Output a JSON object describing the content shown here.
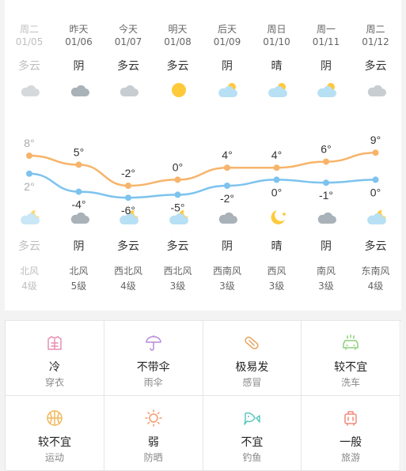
{
  "days": [
    {
      "name": "周二",
      "date": "01/05",
      "day_weather": "多云",
      "night_weather": "多云",
      "wind_dir": "北风",
      "wind_level": "4级",
      "high": "8°",
      "low": "2°",
      "day_icon": "cloud-icon",
      "night_icon": "cloudy-night-icon",
      "past": true
    },
    {
      "name": "昨天",
      "date": "01/06",
      "day_weather": "阴",
      "night_weather": "阴",
      "wind_dir": "北风",
      "wind_level": "5级",
      "high": "5°",
      "low": "-4°",
      "day_icon": "overcast-icon",
      "night_icon": "overcast-icon",
      "past": false
    },
    {
      "name": "今天",
      "date": "01/07",
      "day_weather": "多云",
      "night_weather": "多云",
      "wind_dir": "西北风",
      "wind_level": "4级",
      "high": "-2°",
      "low": "-6°",
      "day_icon": "cloud-icon",
      "night_icon": "cloudy-night-icon",
      "past": false
    },
    {
      "name": "明天",
      "date": "01/08",
      "day_weather": "多云",
      "night_weather": "多云",
      "wind_dir": "西北风",
      "wind_level": "3级",
      "high": "0°",
      "low": "-5°",
      "day_icon": "sun-icon",
      "night_icon": "cloudy-night-icon",
      "past": false
    },
    {
      "name": "后天",
      "date": "01/09",
      "day_weather": "阴",
      "night_weather": "阴",
      "wind_dir": "西南风",
      "wind_level": "3级",
      "high": "4°",
      "low": "-2°",
      "day_icon": "partly-cloudy-icon",
      "night_icon": "overcast-icon",
      "past": false
    },
    {
      "name": "周日",
      "date": "01/10",
      "day_weather": "晴",
      "night_weather": "晴",
      "wind_dir": "西风",
      "wind_level": "3级",
      "high": "4°",
      "low": "0°",
      "day_icon": "partly-cloudy-icon",
      "night_icon": "moon-icon",
      "past": false
    },
    {
      "name": "周一",
      "date": "01/11",
      "day_weather": "阴",
      "night_weather": "阴",
      "wind_dir": "南风",
      "wind_level": "3级",
      "high": "6°",
      "low": "-1°",
      "day_icon": "partly-cloudy-icon",
      "night_icon": "overcast-icon",
      "past": false
    },
    {
      "name": "周二",
      "date": "01/12",
      "day_weather": "多云",
      "night_weather": "多云",
      "wind_dir": "东南风",
      "wind_level": "4级",
      "high": "9°",
      "low": "0°",
      "day_icon": "cloud-icon",
      "night_icon": "cloudy-night-icon",
      "past": false
    }
  ],
  "chart_data": {
    "type": "line",
    "x": [
      "01/05",
      "01/06",
      "01/07",
      "01/08",
      "01/09",
      "01/10",
      "01/11",
      "01/12"
    ],
    "series": [
      {
        "values": [
          8,
          5,
          -2,
          0,
          4,
          4,
          6,
          9
        ],
        "color": "#f7b46a"
      },
      {
        "values": [
          2,
          -4,
          -6,
          -5,
          -2,
          0,
          -1,
          0
        ],
        "color": "#7cc3ee"
      }
    ]
  },
  "indices": [
    {
      "level": "冷",
      "name": "穿衣",
      "icon": "clothing-icon",
      "color": "#e88fb0"
    },
    {
      "level": "不带伞",
      "name": "雨伞",
      "icon": "umbrella-icon",
      "color": "#b58ad8"
    },
    {
      "level": "极易发",
      "name": "感冒",
      "icon": "pill-icon",
      "color": "#e8a25a"
    },
    {
      "level": "较不宜",
      "name": "洗车",
      "icon": "car-wash-icon",
      "color": "#8fcf7a"
    },
    {
      "level": "较不宜",
      "name": "运动",
      "icon": "basketball-icon",
      "color": "#f0b85a"
    },
    {
      "level": "弱",
      "name": "防晒",
      "icon": "sun-outline-icon",
      "color": "#f29a6f"
    },
    {
      "level": "不宜",
      "name": "钓鱼",
      "icon": "fish-icon",
      "color": "#5ec8c0"
    },
    {
      "level": "一般",
      "name": "旅游",
      "icon": "suitcase-icon",
      "color": "#f08a7a"
    }
  ]
}
